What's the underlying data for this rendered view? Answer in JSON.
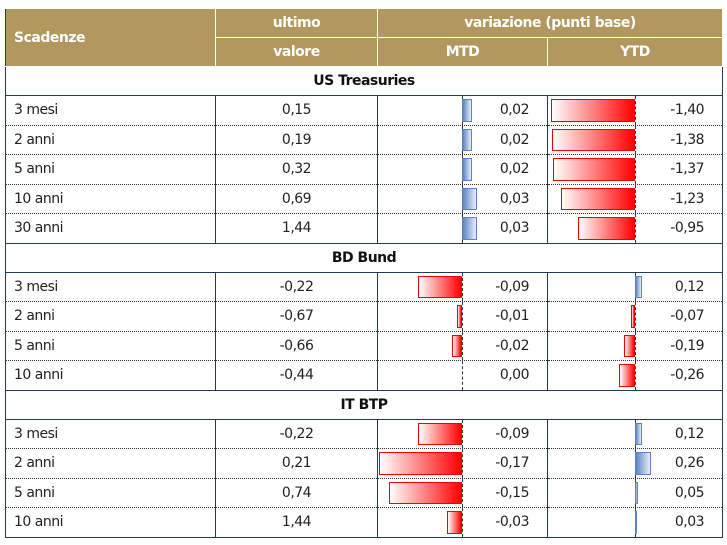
{
  "header": {
    "scadenze": "Scadenze",
    "ultimo1": "ultimo",
    "ultimo2": "valore",
    "variazione": "variazione (punti base)",
    "mtd": "MTD",
    "ytd": "YTD"
  },
  "colors": {
    "header_bg": "#b2975e",
    "negative": "#ff0000",
    "positive": "#5b84c4"
  },
  "sections": [
    {
      "title": "US Treasuries",
      "rows": [
        {
          "scadenza": "3 mesi",
          "valore": "0,15",
          "mtd": "0,02",
          "ytd": "-1,40",
          "mtd_n": 0.02,
          "ytd_n": -1.4
        },
        {
          "scadenza": "2 anni",
          "valore": "0,19",
          "mtd": "0,02",
          "ytd": "-1,38",
          "mtd_n": 0.02,
          "ytd_n": -1.38
        },
        {
          "scadenza": "5 anni",
          "valore": "0,32",
          "mtd": "0,02",
          "ytd": "-1,37",
          "mtd_n": 0.02,
          "ytd_n": -1.37
        },
        {
          "scadenza": "10 anni",
          "valore": "0,69",
          "mtd": "0,03",
          "ytd": "-1,23",
          "mtd_n": 0.03,
          "ytd_n": -1.23
        },
        {
          "scadenza": "30 anni",
          "valore": "1,44",
          "mtd": "0,03",
          "ytd": "-0,95",
          "mtd_n": 0.03,
          "ytd_n": -0.95
        }
      ]
    },
    {
      "title": "BD Bund",
      "rows": [
        {
          "scadenza": "3 mesi",
          "valore": "-0,22",
          "mtd": "-0,09",
          "ytd": "0,12",
          "mtd_n": -0.09,
          "ytd_n": 0.12
        },
        {
          "scadenza": "2 anni",
          "valore": "-0,67",
          "mtd": "-0,01",
          "ytd": "-0,07",
          "mtd_n": -0.01,
          "ytd_n": -0.07
        },
        {
          "scadenza": "5 anni",
          "valore": "-0,66",
          "mtd": "-0,02",
          "ytd": "-0,19",
          "mtd_n": -0.02,
          "ytd_n": -0.19
        },
        {
          "scadenza": "10 anni",
          "valore": "-0,44",
          "mtd": "0,00",
          "ytd": "-0,26",
          "mtd_n": 0.0,
          "ytd_n": -0.26
        }
      ]
    },
    {
      "title": "IT BTP",
      "rows": [
        {
          "scadenza": "3 mesi",
          "valore": "-0,22",
          "mtd": "-0,09",
          "ytd": "0,12",
          "mtd_n": -0.09,
          "ytd_n": 0.12
        },
        {
          "scadenza": "2 anni",
          "valore": "0,21",
          "mtd": "-0,17",
          "ytd": "0,26",
          "mtd_n": -0.17,
          "ytd_n": 0.26
        },
        {
          "scadenza": "5 anni",
          "valore": "0,74",
          "mtd": "-0,15",
          "ytd": "0,05",
          "mtd_n": -0.15,
          "ytd_n": 0.05
        },
        {
          "scadenza": "10 anni",
          "valore": "1,44",
          "mtd": "-0,03",
          "ytd": "0,03",
          "mtd_n": -0.03,
          "ytd_n": 0.03
        }
      ]
    }
  ]
}
